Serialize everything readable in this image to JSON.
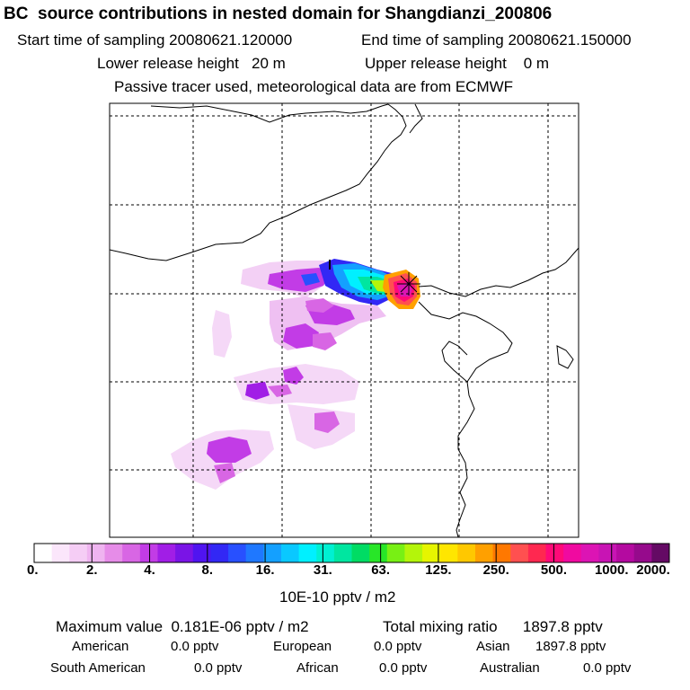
{
  "header": {
    "title": "BC  source contributions in nested domain for Shangdianzi_200806",
    "start_label": "Start time of sampling 20080621.120000",
    "end_label": "End time of sampling 20080621.150000",
    "lower_label": "Lower release height   20 m",
    "upper_label": "Upper release height    0 m",
    "tracer_label": "Passive tracer used, meteorological data are from ECMWF"
  },
  "colorbar": {
    "ticks": [
      "0.",
      "2.",
      "4.",
      "8.",
      "16.",
      "31.",
      "63.",
      "125.",
      "250.",
      "500.",
      "1000.",
      "2000."
    ],
    "unit": "10E-10 pptv / m2",
    "colors": [
      "#ffffff",
      "#fbe6fb",
      "#f5cdf5",
      "#efb4f0",
      "#e68ce8",
      "#d866e4",
      "#c23ce6",
      "#a11ee6",
      "#7a14e6",
      "#5014f0",
      "#3228f5",
      "#2850ff",
      "#1f78ff",
      "#14a0ff",
      "#0ac8ff",
      "#00f0ff",
      "#00f0d2",
      "#00e6a0",
      "#00dc64",
      "#28e628",
      "#78f014",
      "#b4f50a",
      "#e6f500",
      "#ffe600",
      "#ffc800",
      "#ffa000",
      "#ff7800",
      "#ff5050",
      "#ff2850",
      "#ff0a78",
      "#f00aa0",
      "#dc14b4",
      "#c814b4",
      "#b40aa0",
      "#960a8c",
      "#640a64"
    ]
  },
  "footer": {
    "max_label": "Maximum value  0.181E-06 pptv / m2",
    "total_label": "Total mixing ratio      1897.8 pptv",
    "american_label": "American",
    "american_value": "0.0 pptv",
    "european_label": "European",
    "european_value": "0.0 pptv",
    "asian_label": "Asian",
    "asian_value": "1897.8 pptv",
    "south_american_label": "South American",
    "south_american_value": "0.0 pptv",
    "african_label": "African",
    "african_value": "0.0 pptv",
    "australian_label": "Australian",
    "australian_value": "0.0 pptv"
  }
}
